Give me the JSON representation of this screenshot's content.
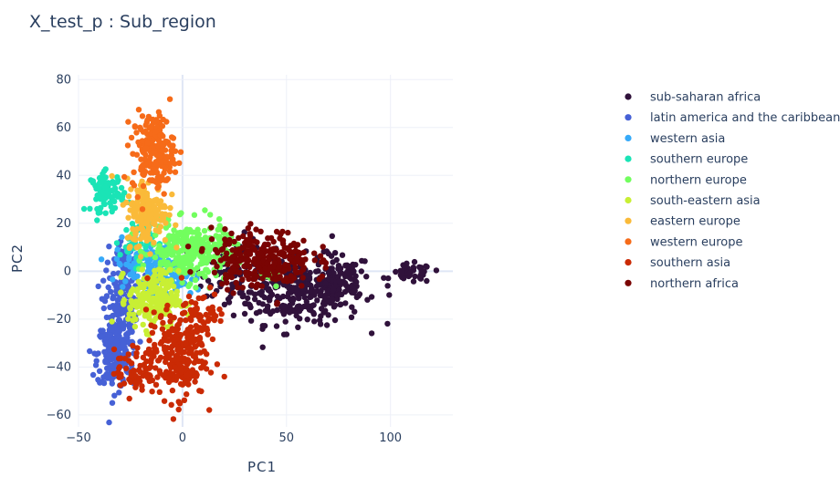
{
  "chart_data": {
    "type": "scatter",
    "title": "X_test_p : Sub_region",
    "xlabel": "PC1",
    "ylabel": "PC2",
    "xlim": [
      -50,
      130
    ],
    "ylim": [
      -65,
      82
    ],
    "x_ticks": [
      -50,
      0,
      50,
      100
    ],
    "y_ticks": [
      -60,
      -40,
      -20,
      0,
      20,
      40,
      60,
      80
    ],
    "x_tick_labels": [
      "−50",
      "0",
      "50",
      "100"
    ],
    "y_tick_labels": [
      "−60",
      "−40",
      "−20",
      "0",
      "20",
      "40",
      "60",
      "80"
    ],
    "grid": true,
    "legend_position": "top-right",
    "series": [
      {
        "name": "sub-saharan africa",
        "color": "#30123b",
        "clusters": [
          {
            "cx": 55,
            "cy": -8,
            "sx": 16,
            "sy": 7,
            "n": 320
          },
          {
            "cx": 75,
            "cy": -5,
            "sx": 7,
            "sy": 6,
            "n": 90
          },
          {
            "cx": 110,
            "cy": -1,
            "sx": 5,
            "sy": 2,
            "n": 45
          },
          {
            "cx": 25,
            "cy": 2,
            "sx": 8,
            "sy": 6,
            "n": 60
          }
        ]
      },
      {
        "name": "latin america and the caribbean",
        "color": "#4661d6",
        "clusters": [
          {
            "cx": -33,
            "cy": -35,
            "sx": 4,
            "sy": 7,
            "n": 200
          },
          {
            "cx": -30,
            "cy": -15,
            "sx": 4,
            "sy": 8,
            "n": 130
          },
          {
            "cx": -27,
            "cy": 3,
            "sx": 4,
            "sy": 5,
            "n": 60
          }
        ]
      },
      {
        "name": "western asia",
        "color": "#36aaf9",
        "clusters": [
          {
            "cx": -18,
            "cy": 3,
            "sx": 7,
            "sy": 5,
            "n": 110
          },
          {
            "cx": -3,
            "cy": -3,
            "sx": 6,
            "sy": 4,
            "n": 50
          }
        ]
      },
      {
        "name": "southern europe",
        "color": "#1ae4b6",
        "clusters": [
          {
            "cx": -36,
            "cy": 33,
            "sx": 4,
            "sy": 4,
            "n": 80
          },
          {
            "cx": -22,
            "cy": 13,
            "sx": 4,
            "sy": 5,
            "n": 50
          }
        ]
      },
      {
        "name": "northern europe",
        "color": "#72fe5e",
        "clusters": [
          {
            "cx": 3,
            "cy": 8,
            "sx": 9,
            "sy": 6,
            "n": 260
          },
          {
            "cx": 20,
            "cy": 13,
            "sx": 3,
            "sy": 3,
            "n": 25
          },
          {
            "cx": 40,
            "cy": -2,
            "sx": 3,
            "sy": 2,
            "n": 15
          }
        ]
      },
      {
        "name": "south-eastern asia",
        "color": "#c8ef34",
        "clusters": [
          {
            "cx": -14,
            "cy": -12,
            "sx": 6,
            "sy": 6,
            "n": 230
          }
        ]
      },
      {
        "name": "eastern europe",
        "color": "#faba39",
        "clusters": [
          {
            "cx": -17,
            "cy": 25,
            "sx": 5,
            "sy": 7,
            "n": 170
          }
        ]
      },
      {
        "name": "western europe",
        "color": "#f66b19",
        "clusters": [
          {
            "cx": -14,
            "cy": 50,
            "sx": 5,
            "sy": 8,
            "n": 200
          }
        ]
      },
      {
        "name": "southern asia",
        "color": "#ca2a04",
        "clusters": [
          {
            "cx": -3,
            "cy": -35,
            "sx": 7,
            "sy": 9,
            "n": 240
          },
          {
            "cx": -23,
            "cy": -42,
            "sx": 5,
            "sy": 5,
            "n": 70
          },
          {
            "cx": 10,
            "cy": -18,
            "sx": 5,
            "sy": 5,
            "n": 60
          }
        ]
      },
      {
        "name": "northern africa",
        "color": "#7a0403",
        "clusters": [
          {
            "cx": 38,
            "cy": 5,
            "sx": 12,
            "sy": 6,
            "n": 280
          }
        ]
      }
    ]
  }
}
